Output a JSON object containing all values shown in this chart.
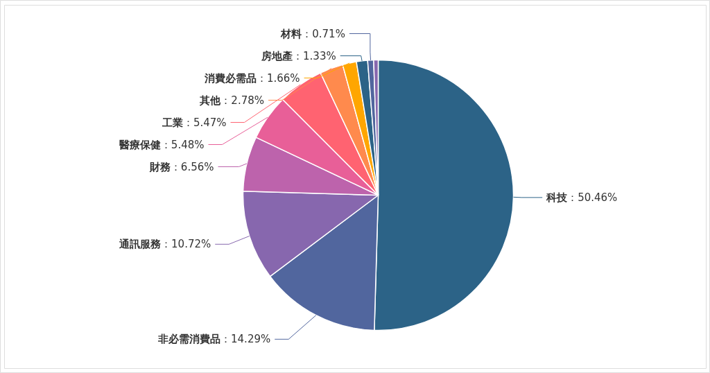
{
  "chart_data": {
    "type": "pie",
    "value_labels": [
      "：50.46%",
      "：14.29%",
      "：10.72%",
      "：6.56%",
      "：5.48%",
      "：5.47%",
      "：2.78%",
      "：1.66%",
      "：1.33%",
      "：0.71%",
      null
    ],
    "categories": [
      "科技",
      "非必需消費品",
      "通訊服務",
      "財務",
      "醫療保健",
      "工業",
      "其他",
      "消費必需品",
      "房地產",
      "材料",
      null
    ],
    "values": [
      50.46,
      14.29,
      10.72,
      6.56,
      5.48,
      5.47,
      2.78,
      1.66,
      1.33,
      0.71,
      0.54
    ],
    "colors": [
      "#2c6387",
      "#51669e",
      "#8767ae",
      "#bd63ac",
      "#e85f98",
      "#ff6371",
      "#ff8a4d",
      "#ffa600",
      "#2c6387",
      "#51669e",
      "#8767ae"
    ]
  }
}
